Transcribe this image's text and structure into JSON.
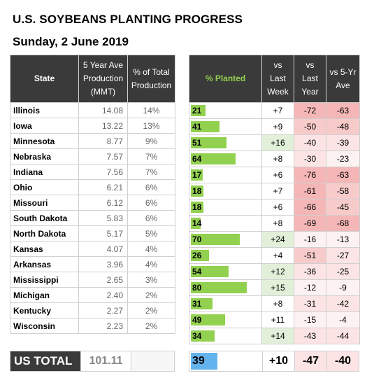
{
  "title": "U.S. SOYBEANS PLANTING PROGRESS",
  "subtitle": "Sunday, 2 June 2019",
  "headers": {
    "state": "State",
    "production": "5 Year Ave Production (MMT)",
    "share": "% of Total Production",
    "planted": "% Planted",
    "vs_last_week": "vs Last Week",
    "vs_last_year": "vs Last Year",
    "vs_5yr": "vs 5-Yr Ave"
  },
  "rows": [
    {
      "state": "Illinois",
      "production": "14.08",
      "share": "14%",
      "planted": "21",
      "planted_value": 21,
      "vs_last_week": "+7",
      "vs_last_year": "-72",
      "vs_5yr": "-63"
    },
    {
      "state": "Iowa",
      "production": "13.22",
      "share": "13%",
      "planted": "41",
      "planted_value": 41,
      "vs_last_week": "+9",
      "vs_last_year": "-50",
      "vs_5yr": "-48"
    },
    {
      "state": "Minnesota",
      "production": "8.77",
      "share": "9%",
      "planted": "51",
      "planted_value": 51,
      "vs_last_week": "+16",
      "vs_last_year": "-40",
      "vs_5yr": "-39"
    },
    {
      "state": "Nebraska",
      "production": "7.57",
      "share": "7%",
      "planted": "64",
      "planted_value": 64,
      "vs_last_week": "+8",
      "vs_last_year": "-30",
      "vs_5yr": "-23"
    },
    {
      "state": "Indiana",
      "production": "7.56",
      "share": "7%",
      "planted": "17",
      "planted_value": 17,
      "vs_last_week": "+6",
      "vs_last_year": "-76",
      "vs_5yr": "-63"
    },
    {
      "state": "Ohio",
      "production": "6.21",
      "share": "6%",
      "planted": "18",
      "planted_value": 18,
      "vs_last_week": "+7",
      "vs_last_year": "-61",
      "vs_5yr": "-58"
    },
    {
      "state": "Missouri",
      "production": "6.12",
      "share": "6%",
      "planted": "18",
      "planted_value": 18,
      "vs_last_week": "+6",
      "vs_last_year": "-66",
      "vs_5yr": "-45"
    },
    {
      "state": "South Dakota",
      "production": "5.83",
      "share": "6%",
      "planted": "14",
      "planted_value": 14,
      "vs_last_week": "+8",
      "vs_last_year": "-69",
      "vs_5yr": "-68"
    },
    {
      "state": "North Dakota",
      "production": "5.17",
      "share": "5%",
      "planted": "70",
      "planted_value": 70,
      "vs_last_week": "+24",
      "vs_last_year": "-16",
      "vs_5yr": "-13"
    },
    {
      "state": "Kansas",
      "production": "4.07",
      "share": "4%",
      "planted": "26",
      "planted_value": 26,
      "vs_last_week": "+4",
      "vs_last_year": "-51",
      "vs_5yr": "-27"
    },
    {
      "state": "Arkansas",
      "production": "3.96",
      "share": "4%",
      "planted": "54",
      "planted_value": 54,
      "vs_last_week": "+12",
      "vs_last_year": "-36",
      "vs_5yr": "-25"
    },
    {
      "state": "Mississippi",
      "production": "2.65",
      "share": "3%",
      "planted": "80",
      "planted_value": 80,
      "vs_last_week": "+15",
      "vs_last_year": "-12",
      "vs_5yr": "-9"
    },
    {
      "state": "Michigan",
      "production": "2.40",
      "share": "2%",
      "planted": "31",
      "planted_value": 31,
      "vs_last_week": "+8",
      "vs_last_year": "-31",
      "vs_5yr": "-42"
    },
    {
      "state": "Kentucky",
      "production": "2.27",
      "share": "2%",
      "planted": "49",
      "planted_value": 49,
      "vs_last_week": "+11",
      "vs_last_year": "-15",
      "vs_5yr": "-4"
    },
    {
      "state": "Wisconsin",
      "production": "2.23",
      "share": "2%",
      "planted": "34",
      "planted_value": 34,
      "vs_last_week": "+14",
      "vs_last_year": "-43",
      "vs_5yr": "-44"
    }
  ],
  "total": {
    "label": "US TOTAL",
    "production": "101.11",
    "planted": "39",
    "vs_last_week": "+10",
    "vs_last_year": "-47",
    "vs_5yr": "-40"
  },
  "colors": {
    "header_bg": "#3a3a3a",
    "bar_green": "#92d050",
    "total_bar_blue": "#63b3ee",
    "positive_tint": "#e2f0d9",
    "negative_tint": "#f8cbcb"
  }
}
